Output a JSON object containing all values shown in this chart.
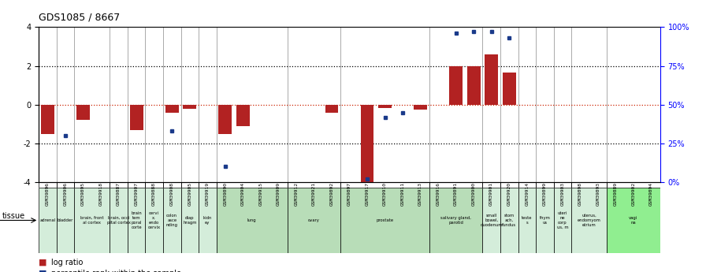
{
  "title": "GDS1085 / 8667",
  "samples": [
    "GSM39896",
    "GSM39906",
    "GSM39895",
    "GSM39918",
    "GSM39887",
    "GSM39907",
    "GSM39888",
    "GSM39908",
    "GSM39905",
    "GSM39919",
    "GSM39890",
    "GSM39904",
    "GSM39915",
    "GSM39909",
    "GSM39912",
    "GSM39921",
    "GSM39892",
    "GSM39897",
    "GSM39917",
    "GSM39910",
    "GSM39911",
    "GSM39913",
    "GSM39916",
    "GSM39891",
    "GSM39900",
    "GSM39901",
    "GSM39920",
    "GSM39914",
    "GSM39899",
    "GSM39903",
    "GSM39898",
    "GSM39893",
    "GSM39889",
    "GSM39902",
    "GSM39894"
  ],
  "log_ratio": [
    -1.5,
    0.0,
    -0.8,
    0.0,
    0.0,
    -1.3,
    0.0,
    -0.4,
    -0.2,
    0.0,
    -1.5,
    -1.1,
    0.0,
    0.0,
    0.0,
    0.0,
    -0.4,
    0.0,
    -4.0,
    -0.15,
    0.0,
    -0.25,
    0.0,
    2.0,
    2.0,
    2.6,
    1.65,
    0.0,
    0.0,
    0.0,
    0.0,
    0.0,
    0.0,
    0.0,
    0.0
  ],
  "percentile": [
    null,
    30,
    null,
    null,
    null,
    null,
    null,
    33,
    null,
    null,
    10,
    null,
    null,
    null,
    null,
    null,
    null,
    null,
    2,
    42,
    45,
    null,
    null,
    null,
    null,
    null,
    null,
    null,
    null,
    null,
    null,
    null,
    null,
    null,
    null
  ],
  "percentile_high": [
    null,
    null,
    null,
    null,
    null,
    null,
    null,
    null,
    null,
    null,
    null,
    null,
    null,
    null,
    null,
    null,
    null,
    null,
    null,
    null,
    null,
    null,
    null,
    96,
    97,
    97,
    93,
    null,
    null,
    null,
    null,
    null,
    null,
    null,
    null
  ],
  "tissues": [
    {
      "label": "adrenal",
      "start": 0,
      "end": 1
    },
    {
      "label": "bladder",
      "start": 1,
      "end": 2
    },
    {
      "label": "brain, front\nal cortex",
      "start": 2,
      "end": 4
    },
    {
      "label": "brain, occi\npital cortex",
      "start": 4,
      "end": 5
    },
    {
      "label": "brain\ntem\nporal\ncorte",
      "start": 5,
      "end": 6
    },
    {
      "label": "cervi\nx,\nendo\ncervix",
      "start": 6,
      "end": 7
    },
    {
      "label": "colon\nasce\nnding",
      "start": 7,
      "end": 8
    },
    {
      "label": "diap\nhragm",
      "start": 8,
      "end": 9
    },
    {
      "label": "kidn\ney",
      "start": 9,
      "end": 10
    },
    {
      "label": "lung",
      "start": 10,
      "end": 14
    },
    {
      "label": "ovary",
      "start": 14,
      "end": 17
    },
    {
      "label": "prostate",
      "start": 17,
      "end": 22
    },
    {
      "label": "salivary gland,\nparotid",
      "start": 22,
      "end": 25
    },
    {
      "label": "small\nbowel,\nduodenum",
      "start": 25,
      "end": 26
    },
    {
      "label": "stom\nach,\nfundus",
      "start": 26,
      "end": 27
    },
    {
      "label": "teste\ns",
      "start": 27,
      "end": 28
    },
    {
      "label": "thym\nus",
      "start": 28,
      "end": 29
    },
    {
      "label": "uteri\nne\ncorp\nus, m",
      "start": 29,
      "end": 30
    },
    {
      "label": "uterus,\nendomyom\netrium",
      "start": 30,
      "end": 32
    },
    {
      "label": "vagi\nna",
      "start": 32,
      "end": 35
    }
  ],
  "tissue_colors": {
    "adrenal": "#d4edda",
    "bladder": "#d4edda",
    "brain, front\nal cortex": "#d4edda",
    "brain, occi\npital cortex": "#d4edda",
    "brain\ntem\nporal\ncorte": "#d4edda",
    "cervi\nx,\nendo\ncervix": "#d4edda",
    "colon\nasce\nnding": "#d4edda",
    "diap\nhragm": "#d4edda",
    "kidn\ney": "#d4edda",
    "lung": "#b8ddb8",
    "ovary": "#b8ddb8",
    "prostate": "#b8ddb8",
    "salivary gland,\nparotid": "#b8ddb8",
    "small\nbowel,\nduodenum": "#d4edda",
    "stom\nach,\nfundus": "#d4edda",
    "teste\ns": "#d4edda",
    "thym\nus": "#d4edda",
    "uteri\nne\ncorp\nus, m": "#d4edda",
    "uterus,\nendomyom\netrium": "#d4edda",
    "vagi\nna": "#90ee90"
  },
  "ylim": [
    -4,
    4
  ],
  "yticks_left": [
    -4,
    -2,
    0,
    2,
    4
  ],
  "yticks_right": [
    0,
    25,
    50,
    75,
    100
  ],
  "bar_color_red": "#b22222",
  "bar_color_blue": "#1a3a8a",
  "zero_line_color": "#cc2200"
}
